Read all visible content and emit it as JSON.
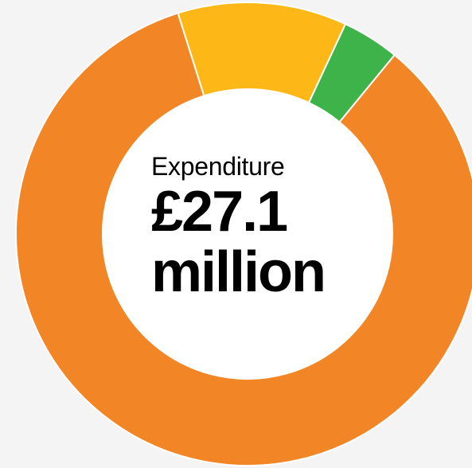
{
  "chart_data": {
    "type": "pie",
    "style": "donut",
    "title": "",
    "center_text": {
      "caption": "Expenditure",
      "amount_line1": "£27.1",
      "amount_line2": "million"
    },
    "slices": [
      {
        "label": "",
        "value": 4.0,
        "color": "#3db34a"
      },
      {
        "label": "",
        "value": 84.2,
        "color": "#f28627"
      },
      {
        "label": "",
        "value": 11.8,
        "color": "#fdb817"
      }
    ],
    "start_angle_deg": 65,
    "legend": "none",
    "colors": {
      "background": "#f4f4f4",
      "hole": "#ffffff",
      "separator": "#ffffff"
    }
  }
}
